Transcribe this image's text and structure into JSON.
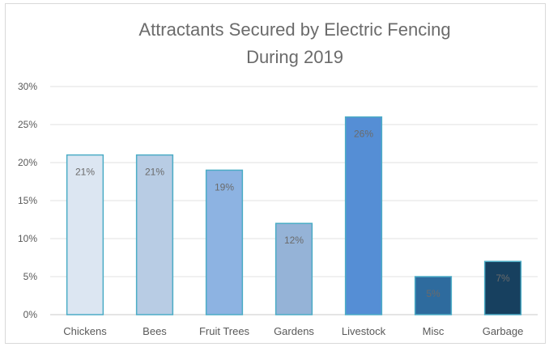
{
  "chart_data": {
    "type": "bar",
    "title_lines": [
      "Attractants Secured by Electric Fencing",
      "During 2019"
    ],
    "categories": [
      "Chickens",
      "Bees",
      "Fruit Trees",
      "Gardens",
      "Livestock",
      "Misc",
      "Garbage"
    ],
    "values": [
      21,
      21,
      19,
      12,
      26,
      5,
      7
    ],
    "data_labels": [
      "21%",
      "21%",
      "19%",
      "12%",
      "26%",
      "5%",
      "7%"
    ],
    "ylim": [
      0,
      30
    ],
    "yticks": [
      0,
      5,
      10,
      15,
      20,
      25,
      30
    ],
    "ytick_labels": [
      "0%",
      "5%",
      "10%",
      "15%",
      "20%",
      "25%",
      "30%"
    ],
    "grid": true,
    "legend": "none",
    "bar_fill_colors": [
      "#dce6f2",
      "#b8cce4",
      "#8db3e2",
      "#95b3d7",
      "#558ed5",
      "#2e6b9e",
      "#17405f"
    ],
    "bar_stroke_colors": [
      "#4bacc6",
      "#4bacc6",
      "#4bacc6",
      "#4bacc6",
      "#4bacc6",
      "#4bacc6",
      "#4bacc6"
    ]
  }
}
